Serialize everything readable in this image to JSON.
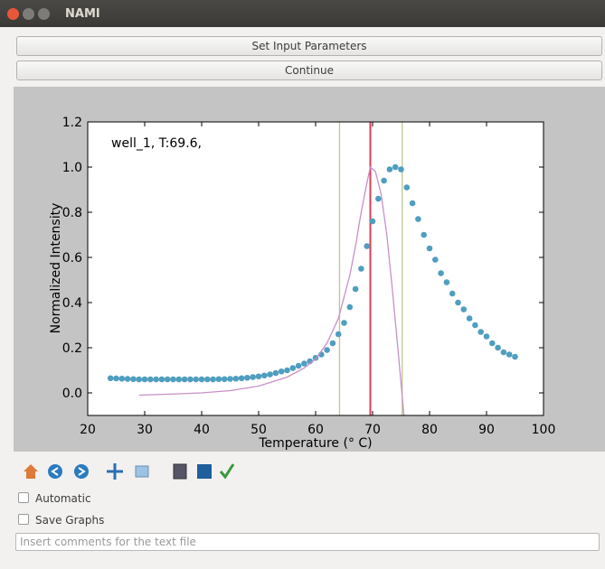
{
  "window": {
    "title": "NAMI"
  },
  "buttons": [
    "Set Input Parameters",
    "Continue"
  ],
  "checkboxes": [
    "Automatic",
    "Save Graphs"
  ],
  "comment_placeholder": "Insert comments for the text file",
  "chart_data": {
    "type": "scatter",
    "annotation": "well_1, T:69.6,",
    "xlabel": "Temperature (° C)",
    "ylabel": "Normalized Intensity",
    "xlim": [
      20,
      100
    ],
    "ylim": [
      -0.1,
      1.2
    ],
    "xticks": [
      20,
      30,
      40,
      50,
      60,
      70,
      80,
      90,
      100
    ],
    "yticks": [
      {
        "value": 0,
        "label": "0.0"
      },
      0.2,
      0.4,
      0.6,
      0.8,
      {
        "value": 1,
        "label": "1.0"
      },
      1.2
    ],
    "series": [
      {
        "type": "scatter",
        "color": "#4f9ec0",
        "x": [
          24,
          25,
          26,
          27,
          28,
          29,
          30,
          31,
          32,
          33,
          34,
          35,
          36,
          37,
          38,
          39,
          40,
          41,
          42,
          43,
          44,
          45,
          46,
          47,
          48,
          49,
          50,
          51,
          52,
          53,
          54,
          55,
          56,
          57,
          58,
          59,
          60,
          61,
          62,
          63,
          64,
          65,
          66,
          67,
          68,
          69,
          70,
          71,
          72,
          73,
          74,
          75,
          76,
          77,
          78,
          79,
          80,
          81,
          82,
          83,
          84,
          85,
          86,
          87,
          88,
          89,
          90,
          91,
          92,
          93,
          94,
          95
        ],
        "values": [
          0.065,
          0.064,
          0.063,
          0.062,
          0.061,
          0.06,
          0.06,
          0.06,
          0.06,
          0.06,
          0.06,
          0.06,
          0.06,
          0.06,
          0.06,
          0.06,
          0.06,
          0.06,
          0.06,
          0.061,
          0.061,
          0.062,
          0.063,
          0.065,
          0.067,
          0.07,
          0.073,
          0.077,
          0.082,
          0.088,
          0.095,
          0.1,
          0.11,
          0.12,
          0.13,
          0.14,
          0.155,
          0.17,
          0.19,
          0.22,
          0.26,
          0.31,
          0.38,
          0.46,
          0.55,
          0.65,
          0.76,
          0.86,
          0.94,
          0.99,
          1.0,
          0.99,
          0.91,
          0.84,
          0.77,
          0.7,
          0.64,
          0.59,
          0.53,
          0.49,
          0.44,
          0.4,
          0.37,
          0.33,
          0.3,
          0.27,
          0.25,
          0.22,
          0.2,
          0.18,
          0.17,
          0.16
        ]
      },
      {
        "type": "line",
        "color": "#c890c8",
        "x": [
          29,
          35,
          40,
          45,
          50,
          55,
          58,
          60,
          62,
          64,
          66,
          67,
          68,
          69,
          69.6,
          70.5,
          71.5,
          72.5,
          73.5,
          74.5,
          75.5
        ],
        "values": [
          -0.01,
          -0.005,
          0.0,
          0.01,
          0.03,
          0.07,
          0.11,
          0.15,
          0.22,
          0.33,
          0.52,
          0.65,
          0.8,
          0.93,
          1.0,
          0.98,
          0.88,
          0.7,
          0.45,
          0.18,
          -0.1
        ]
      }
    ],
    "vlines": [
      {
        "value": 64.2,
        "color": "#b9c98f"
      },
      {
        "value": 69.6,
        "color": "#e03c58"
      },
      {
        "value": 75.2,
        "color": "#b9c98f"
      }
    ]
  }
}
